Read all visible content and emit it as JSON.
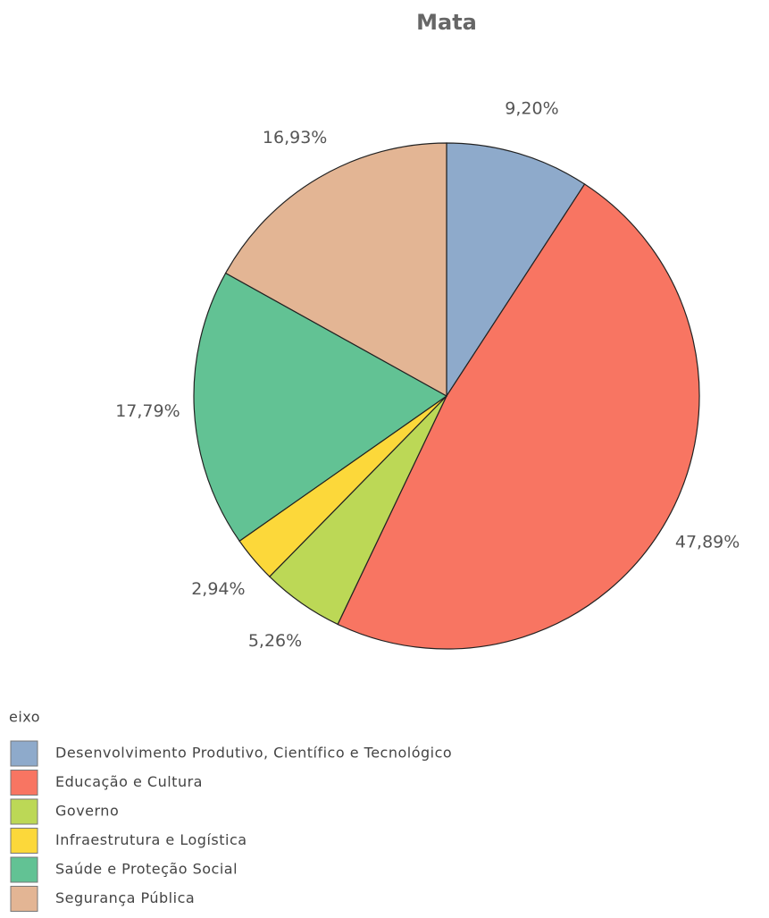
{
  "chart_data": {
    "type": "pie",
    "title": "Mata",
    "categories": [
      "Desenvolvimento Produtivo, Científico e Tecnológico",
      "Educação e Cultura",
      "Governo",
      "Infraestrutura e Logística",
      "Saúde e Proteção Social",
      "Segurança Pública"
    ],
    "values": [
      9.2,
      47.89,
      5.26,
      2.94,
      17.79,
      16.93
    ],
    "value_labels": [
      "9,20%",
      "47,89%",
      "5,26%",
      "2,94%",
      "17,79%",
      "16,93%"
    ],
    "colors": [
      "#8eaacb",
      "#f87562",
      "#bcd856",
      "#fcd83a",
      "#62c294",
      "#e3b594"
    ],
    "legend_title": "eixo"
  }
}
